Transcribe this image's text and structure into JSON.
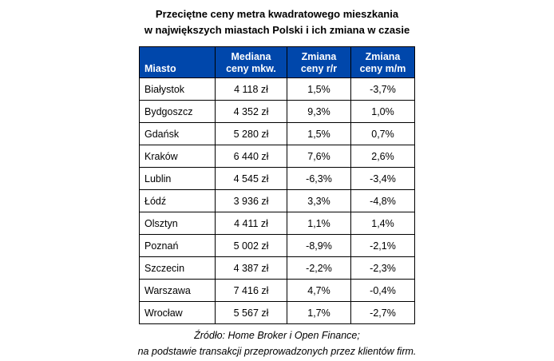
{
  "title": {
    "line1": "Przeciętne ceny metra kwadratowego mieszkania",
    "line2": "w największych miastach Polski i ich zmiana w czasie"
  },
  "table": {
    "headers": [
      {
        "label": "Miasto"
      },
      {
        "label": "Mediana\nceny mkw."
      },
      {
        "label": "Zmiana\nceny r/r"
      },
      {
        "label": "Zmiana\nceny m/m"
      }
    ],
    "rows": [
      {
        "city": "Białystok",
        "median": "4 118 zł",
        "yoy": "1,5%",
        "mom": "-3,7%"
      },
      {
        "city": "Bydgoszcz",
        "median": "4 352 zł",
        "yoy": "9,3%",
        "mom": "1,0%"
      },
      {
        "city": "Gdańsk",
        "median": "5 280 zł",
        "yoy": "1,5%",
        "mom": "0,7%"
      },
      {
        "city": "Kraków",
        "median": "6 440 zł",
        "yoy": "7,6%",
        "mom": "2,6%"
      },
      {
        "city": "Lublin",
        "median": "4 545 zł",
        "yoy": "-6,3%",
        "mom": "-3,4%"
      },
      {
        "city": "Łódź",
        "median": "3 936 zł",
        "yoy": "3,3%",
        "mom": "-4,8%"
      },
      {
        "city": "Olsztyn",
        "median": "4 411 zł",
        "yoy": "1,1%",
        "mom": "1,4%"
      },
      {
        "city": "Poznań",
        "median": "5 002 zł",
        "yoy": "-8,9%",
        "mom": "-2,1%"
      },
      {
        "city": "Szczecin",
        "median": "4 387 zł",
        "yoy": "-2,2%",
        "mom": "-2,3%"
      },
      {
        "city": "Warszawa",
        "median": "7 416 zł",
        "yoy": "4,7%",
        "mom": "-0,4%"
      },
      {
        "city": "Wrocław",
        "median": "5 567 zł",
        "yoy": "1,7%",
        "mom": "-2,7%"
      }
    ]
  },
  "footer": {
    "line1": "Źródło: Home Broker i Open Finance;",
    "line2": "na podstawie transakcji przeprowadzonych przez klientów firm."
  },
  "colors": {
    "header_bg": "#0047ab",
    "header_text": "#ffffff",
    "border": "#000000"
  },
  "chart_data": {
    "type": "table",
    "title": "Przeciętne ceny metra kwadratowego mieszkania w największych miastach Polski i ich zmiana w czasie",
    "columns": [
      "Miasto",
      "Mediana ceny mkw.",
      "Zmiana ceny r/r",
      "Zmiana ceny m/m"
    ],
    "rows": [
      [
        "Białystok",
        "4 118 zł",
        "1,5%",
        "-3,7%"
      ],
      [
        "Bydgoszcz",
        "4 352 zł",
        "9,3%",
        "1,0%"
      ],
      [
        "Gdańsk",
        "5 280 zł",
        "1,5%",
        "0,7%"
      ],
      [
        "Kraków",
        "6 440 zł",
        "7,6%",
        "2,6%"
      ],
      [
        "Lublin",
        "4 545 zł",
        "-6,3%",
        "-3,4%"
      ],
      [
        "Łódź",
        "3 936 zł",
        "3,3%",
        "-4,8%"
      ],
      [
        "Olsztyn",
        "4 411 zł",
        "1,1%",
        "1,4%"
      ],
      [
        "Poznań",
        "5 002 zł",
        "-8,9%",
        "-2,1%"
      ],
      [
        "Szczecin",
        "4 387 zł",
        "-2,2%",
        "-2,3%"
      ],
      [
        "Warszawa",
        "7 416 zł",
        "4,7%",
        "-0,4%"
      ],
      [
        "Wrocław",
        "5 567 zł",
        "1,7%",
        "-2,7%"
      ]
    ],
    "source": "Źródło: Home Broker i Open Finance; na podstawie transakcji przeprowadzonych przez klientów firm."
  }
}
